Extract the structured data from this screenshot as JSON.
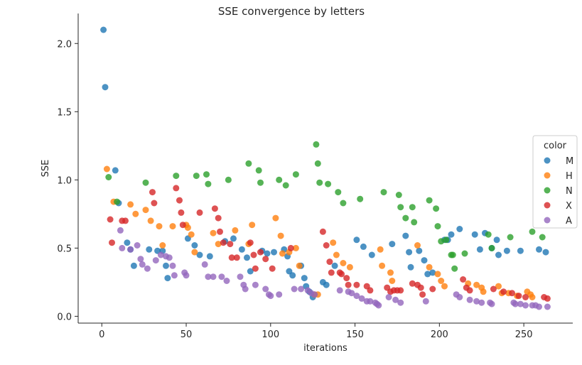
{
  "chart_data": {
    "type": "scatter",
    "title": "SSE convergence by letters",
    "xlabel": "iterations",
    "ylabel": "SSE",
    "xlim": [
      -14,
      279
    ],
    "ylim": [
      -0.05,
      2.22
    ],
    "xticks": [
      0,
      50,
      100,
      150,
      200,
      250
    ],
    "yticks": [
      0.0,
      0.5,
      1.0,
      1.5,
      2.0
    ],
    "xtick_labels": [
      "0",
      "50",
      "100",
      "150",
      "200",
      "250"
    ],
    "ytick_labels": [
      "0.0",
      "0.5",
      "1.0",
      "1.5",
      "2.0"
    ],
    "grid": false,
    "legend": {
      "title": "color",
      "placement": "right"
    },
    "series": [
      {
        "name": "M",
        "color": "#1f77b4",
        "points": [
          [
            1,
            2.1
          ],
          [
            2,
            1.68
          ],
          [
            8,
            1.07
          ],
          [
            10,
            0.83
          ],
          [
            15,
            0.54
          ],
          [
            17,
            0.49
          ],
          [
            19,
            0.37
          ],
          [
            28,
            0.49
          ],
          [
            33,
            0.48
          ],
          [
            36,
            0.48
          ],
          [
            38,
            0.37
          ],
          [
            39,
            0.28
          ],
          [
            51,
            0.57
          ],
          [
            55,
            0.52
          ],
          [
            58,
            0.45
          ],
          [
            64,
            0.44
          ],
          [
            73,
            0.55
          ],
          [
            78,
            0.57
          ],
          [
            83,
            0.49
          ],
          [
            86,
            0.43
          ],
          [
            88,
            0.33
          ],
          [
            95,
            0.48
          ],
          [
            98,
            0.46
          ],
          [
            102,
            0.47
          ],
          [
            108,
            0.49
          ],
          [
            110,
            0.44
          ],
          [
            111,
            0.33
          ],
          [
            113,
            0.3
          ],
          [
            118,
            0.37
          ],
          [
            120,
            0.28
          ],
          [
            121,
            0.22
          ],
          [
            123,
            0.18
          ],
          [
            125,
            0.14
          ],
          [
            131,
            0.25
          ],
          [
            133,
            0.23
          ],
          [
            138,
            0.37
          ],
          [
            151,
            0.56
          ],
          [
            155,
            0.51
          ],
          [
            160,
            0.45
          ],
          [
            172,
            0.53
          ],
          [
            180,
            0.59
          ],
          [
            182,
            0.47
          ],
          [
            183,
            0.36
          ],
          [
            188,
            0.48
          ],
          [
            191,
            0.41
          ],
          [
            193,
            0.31
          ],
          [
            196,
            0.32
          ],
          [
            203,
            0.56
          ],
          [
            205,
            0.56
          ],
          [
            207,
            0.6
          ],
          [
            212,
            0.64
          ],
          [
            221,
            0.6
          ],
          [
            224,
            0.49
          ],
          [
            227,
            0.61
          ],
          [
            231,
            0.5
          ],
          [
            234,
            0.56
          ],
          [
            235,
            0.45
          ],
          [
            240,
            0.48
          ],
          [
            248,
            0.48
          ],
          [
            259,
            0.49
          ],
          [
            263,
            0.47
          ]
        ]
      },
      {
        "name": "H",
        "color": "#ff7f0e",
        "points": [
          [
            3,
            1.08
          ],
          [
            7,
            0.84
          ],
          [
            17,
            0.82
          ],
          [
            20,
            0.75
          ],
          [
            26,
            0.78
          ],
          [
            29,
            0.7
          ],
          [
            34,
            0.66
          ],
          [
            36,
            0.52
          ],
          [
            42,
            0.66
          ],
          [
            50,
            0.67
          ],
          [
            51,
            0.65
          ],
          [
            53,
            0.6
          ],
          [
            55,
            0.47
          ],
          [
            66,
            0.61
          ],
          [
            69,
            0.53
          ],
          [
            79,
            0.63
          ],
          [
            87,
            0.53
          ],
          [
            89,
            0.67
          ],
          [
            103,
            0.72
          ],
          [
            106,
            0.59
          ],
          [
            107,
            0.46
          ],
          [
            111,
            0.47
          ],
          [
            115,
            0.5
          ],
          [
            117,
            0.37
          ],
          [
            126,
            0.16
          ],
          [
            128,
            0.16
          ],
          [
            137,
            0.54
          ],
          [
            139,
            0.45
          ],
          [
            143,
            0.39
          ],
          [
            147,
            0.36
          ],
          [
            165,
            0.49
          ],
          [
            166,
            0.37
          ],
          [
            171,
            0.32
          ],
          [
            172,
            0.26
          ],
          [
            187,
            0.52
          ],
          [
            194,
            0.36
          ],
          [
            199,
            0.31
          ],
          [
            201,
            0.26
          ],
          [
            203,
            0.22
          ],
          [
            217,
            0.24
          ],
          [
            222,
            0.23
          ],
          [
            225,
            0.21
          ],
          [
            226,
            0.18
          ],
          [
            235,
            0.22
          ],
          [
            237,
            0.17
          ],
          [
            241,
            0.17
          ],
          [
            246,
            0.15
          ],
          [
            252,
            0.18
          ],
          [
            254,
            0.16
          ],
          [
            255,
            0.14
          ]
        ]
      },
      {
        "name": "N",
        "color": "#2ca02c",
        "points": [
          [
            4,
            1.02
          ],
          [
            9,
            0.84
          ],
          [
            26,
            0.98
          ],
          [
            44,
            1.03
          ],
          [
            56,
            1.03
          ],
          [
            62,
            1.04
          ],
          [
            63,
            0.97
          ],
          [
            75,
            1.0
          ],
          [
            87,
            1.12
          ],
          [
            93,
            1.07
          ],
          [
            94,
            0.98
          ],
          [
            105,
            1.0
          ],
          [
            109,
            0.96
          ],
          [
            115,
            1.04
          ],
          [
            127,
            1.26
          ],
          [
            128,
            1.12
          ],
          [
            129,
            0.98
          ],
          [
            134,
            0.97
          ],
          [
            140,
            0.91
          ],
          [
            143,
            0.83
          ],
          [
            153,
            0.86
          ],
          [
            167,
            0.91
          ],
          [
            176,
            0.89
          ],
          [
            177,
            0.8
          ],
          [
            180,
            0.72
          ],
          [
            184,
            0.8
          ],
          [
            185,
            0.69
          ],
          [
            194,
            0.85
          ],
          [
            198,
            0.79
          ],
          [
            199,
            0.66
          ],
          [
            201,
            0.55
          ],
          [
            204,
            0.56
          ],
          [
            207,
            0.45
          ],
          [
            208,
            0.45
          ],
          [
            209,
            0.35
          ],
          [
            215,
            0.46
          ],
          [
            229,
            0.6
          ],
          [
            231,
            0.5
          ],
          [
            242,
            0.58
          ],
          [
            255,
            0.62
          ],
          [
            261,
            0.58
          ]
        ]
      },
      {
        "name": "X",
        "color": "#d62728",
        "points": [
          [
            5,
            0.71
          ],
          [
            6,
            0.54
          ],
          [
            12,
            0.7
          ],
          [
            14,
            0.7
          ],
          [
            30,
            0.91
          ],
          [
            31,
            0.83
          ],
          [
            44,
            0.94
          ],
          [
            46,
            0.85
          ],
          [
            47,
            0.76
          ],
          [
            48,
            0.67
          ],
          [
            58,
            0.76
          ],
          [
            67,
            0.79
          ],
          [
            69,
            0.72
          ],
          [
            70,
            0.62
          ],
          [
            72,
            0.54
          ],
          [
            76,
            0.53
          ],
          [
            77,
            0.43
          ],
          [
            80,
            0.43
          ],
          [
            88,
            0.54
          ],
          [
            90,
            0.45
          ],
          [
            91,
            0.35
          ],
          [
            94,
            0.47
          ],
          [
            97,
            0.42
          ],
          [
            101,
            0.35
          ],
          [
            112,
            0.5
          ],
          [
            131,
            0.62
          ],
          [
            133,
            0.52
          ],
          [
            135,
            0.4
          ],
          [
            136,
            0.32
          ],
          [
            141,
            0.32
          ],
          [
            142,
            0.31
          ],
          [
            145,
            0.28
          ],
          [
            146,
            0.23
          ],
          [
            151,
            0.23
          ],
          [
            157,
            0.22
          ],
          [
            159,
            0.19
          ],
          [
            169,
            0.21
          ],
          [
            171,
            0.18
          ],
          [
            173,
            0.19
          ],
          [
            175,
            0.19
          ],
          [
            177,
            0.19
          ],
          [
            184,
            0.24
          ],
          [
            187,
            0.23
          ],
          [
            189,
            0.21
          ],
          [
            190,
            0.16
          ],
          [
            196,
            0.2
          ],
          [
            214,
            0.27
          ],
          [
            216,
            0.21
          ],
          [
            218,
            0.19
          ],
          [
            232,
            0.2
          ],
          [
            238,
            0.18
          ],
          [
            243,
            0.17
          ],
          [
            247,
            0.15
          ],
          [
            251,
            0.14
          ],
          [
            262,
            0.14
          ],
          [
            264,
            0.13
          ]
        ]
      },
      {
        "name": "A",
        "color": "#9467bd",
        "points": [
          [
            11,
            0.63
          ],
          [
            12,
            0.5
          ],
          [
            17,
            0.49
          ],
          [
            21,
            0.52
          ],
          [
            23,
            0.42
          ],
          [
            24,
            0.38
          ],
          [
            27,
            0.35
          ],
          [
            32,
            0.41
          ],
          [
            35,
            0.45
          ],
          [
            38,
            0.44
          ],
          [
            40,
            0.43
          ],
          [
            42,
            0.37
          ],
          [
            43,
            0.3
          ],
          [
            49,
            0.32
          ],
          [
            50,
            0.3
          ],
          [
            61,
            0.38
          ],
          [
            63,
            0.29
          ],
          [
            66,
            0.29
          ],
          [
            71,
            0.29
          ],
          [
            74,
            0.26
          ],
          [
            82,
            0.29
          ],
          [
            84,
            0.23
          ],
          [
            85,
            0.2
          ],
          [
            91,
            0.23
          ],
          [
            97,
            0.2
          ],
          [
            99,
            0.16
          ],
          [
            100,
            0.15
          ],
          [
            105,
            0.16
          ],
          [
            114,
            0.2
          ],
          [
            118,
            0.2
          ],
          [
            122,
            0.19
          ],
          [
            124,
            0.17
          ],
          [
            126,
            0.16
          ],
          [
            141,
            0.19
          ],
          [
            146,
            0.18
          ],
          [
            148,
            0.17
          ],
          [
            151,
            0.15
          ],
          [
            154,
            0.13
          ],
          [
            157,
            0.11
          ],
          [
            159,
            0.11
          ],
          [
            162,
            0.1
          ],
          [
            163,
            0.09
          ],
          [
            164,
            0.08
          ],
          [
            170,
            0.14
          ],
          [
            174,
            0.12
          ],
          [
            177,
            0.1
          ],
          [
            192,
            0.11
          ],
          [
            210,
            0.16
          ],
          [
            212,
            0.14
          ],
          [
            218,
            0.12
          ],
          [
            222,
            0.11
          ],
          [
            225,
            0.1
          ],
          [
            230,
            0.1
          ],
          [
            231,
            0.09
          ],
          [
            244,
            0.1
          ],
          [
            245,
            0.09
          ],
          [
            248,
            0.09
          ],
          [
            251,
            0.08
          ],
          [
            255,
            0.08
          ],
          [
            257,
            0.08
          ],
          [
            259,
            0.07
          ],
          [
            264,
            0.07
          ]
        ]
      }
    ]
  }
}
